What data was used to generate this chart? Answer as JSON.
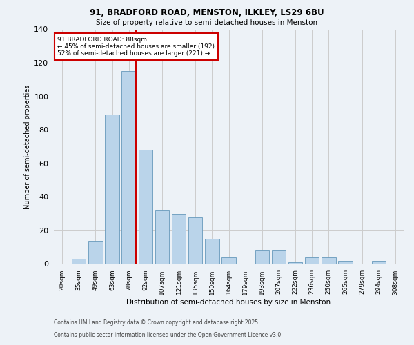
{
  "title1": "91, BRADFORD ROAD, MENSTON, ILKLEY, LS29 6BU",
  "title2": "Size of property relative to semi-detached houses in Menston",
  "xlabel": "Distribution of semi-detached houses by size in Menston",
  "ylabel": "Number of semi-detached properties",
  "bar_labels": [
    "20sqm",
    "35sqm",
    "49sqm",
    "63sqm",
    "78sqm",
    "92sqm",
    "107sqm",
    "121sqm",
    "135sqm",
    "150sqm",
    "164sqm",
    "179sqm",
    "193sqm",
    "207sqm",
    "222sqm",
    "236sqm",
    "250sqm",
    "265sqm",
    "279sqm",
    "294sqm",
    "308sqm"
  ],
  "bar_values": [
    0,
    3,
    14,
    89,
    115,
    68,
    32,
    30,
    28,
    15,
    4,
    0,
    8,
    8,
    1,
    4,
    4,
    2,
    0,
    2,
    0
  ],
  "bar_color": "#bad4ea",
  "bar_edge_color": "#6699bb",
  "vline_color": "#cc0000",
  "annotation_box_color": "#ffffff",
  "annotation_box_edge": "#cc0000",
  "property_label": "91 BRADFORD ROAD: 88sqm",
  "pct_smaller": 45,
  "count_smaller": 192,
  "pct_larger": 52,
  "count_larger": 221,
  "vline_bar_index": 4,
  "ylim": [
    0,
    140
  ],
  "yticks": [
    0,
    20,
    40,
    60,
    80,
    100,
    120,
    140
  ],
  "footnote1": "Contains HM Land Registry data © Crown copyright and database right 2025.",
  "footnote2": "Contains public sector information licensed under the Open Government Licence v3.0.",
  "background_color": "#edf2f7"
}
